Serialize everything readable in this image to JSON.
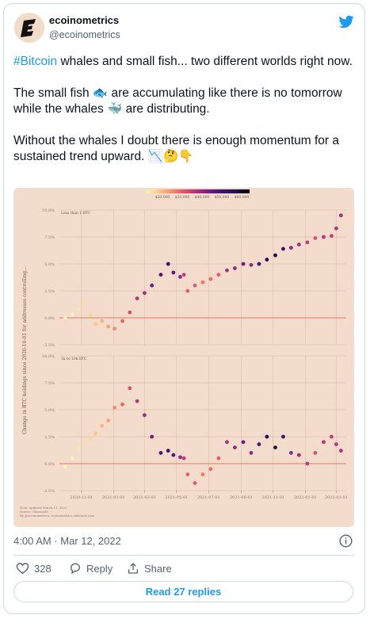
{
  "tweet": {
    "author": {
      "name": "ecoinometrics",
      "handle": "@ecoinometrics"
    },
    "text": {
      "hashtag": "#Bitcoin",
      "paragraph1": " whales and small fish... two different worlds right now.",
      "paragraph2": "The small fish 🐟 are accumulating like there is no tomorrow while the whales 🐳 are distributing.",
      "paragraph3": "Without the whales I doubt there is enough momentum for a sustained trend upward. 📉🤔👇"
    },
    "timestamp": "4:00 AM · Mar 12, 2022",
    "likes": 328,
    "actions": {
      "reply": "Reply",
      "share": "Share"
    },
    "read_replies": "Read 27 replies"
  },
  "chart_ylabel": "Change in BTC holdings since 2020-10-01 for addresses controlling...",
  "colorbar": {
    "colors": [
      "#fcf3b0",
      "#fdc588",
      "#f68b6d",
      "#d84f6f",
      "#a82e7f",
      "#6a1c81",
      "#3b0f70",
      "#1d1147",
      "#000004"
    ],
    "lim": [
      12000,
      64000
    ],
    "ticks": [
      {
        "value": 20000,
        "label": "$20,000"
      },
      {
        "value": 30000,
        "label": "$30,000"
      },
      {
        "value": 40000,
        "label": "$40,000"
      },
      {
        "value": 50000,
        "label": "$50,000"
      },
      {
        "value": 60000,
        "label": "$60,000"
      }
    ]
  },
  "footnotes": [
    "Note: updated March 11, 2022",
    "Source: Glassnode",
    "By @ecoinometrics, ecoinometrics.substack.com"
  ],
  "chart_data": [
    {
      "type": "scatter",
      "title": "Less than 1 BTC",
      "x": [
        "2020-10-01",
        "2020-10-15",
        "2020-10-28",
        "2020-11-08",
        "2020-11-18",
        "2020-11-28",
        "2020-12-10",
        "2020-12-22",
        "2021-01-03",
        "2021-01-18",
        "2021-02-01",
        "2021-02-15",
        "2021-03-01",
        "2021-03-15",
        "2021-04-01",
        "2021-04-15",
        "2021-04-25",
        "2021-05-08",
        "2021-05-15",
        "2021-05-22",
        "2021-06-05",
        "2021-06-20",
        "2021-07-05",
        "2021-07-20",
        "2021-08-05",
        "2021-08-20",
        "2021-09-05",
        "2021-09-20",
        "2021-10-05",
        "2021-10-20",
        "2021-11-05",
        "2021-11-20",
        "2021-12-05",
        "2021-12-20",
        "2022-01-05",
        "2022-01-20",
        "2022-02-05",
        "2022-02-20",
        "2022-03-01",
        "2022-03-10"
      ],
      "values": [
        0,
        0.3,
        0.8,
        1.5,
        0.2,
        -0.6,
        -0.3,
        -0.8,
        -1.0,
        -0.3,
        0.5,
        1.8,
        2.3,
        3.0,
        4.0,
        5.0,
        4.2,
        3.8,
        4.0,
        2.5,
        3.0,
        3.3,
        3.6,
        4.0,
        4.4,
        4.6,
        5.0,
        4.9,
        5.0,
        5.4,
        5.8,
        6.4,
        6.5,
        6.8,
        7.0,
        7.4,
        7.5,
        7.6,
        8.3,
        9.5
      ],
      "colors": [
        "#fcf3b0",
        "#fcf3b0",
        "#fde6a4",
        "#fde0a0",
        "#fdd592",
        "#fdc588",
        "#fcb580",
        "#fba277",
        "#f68b6d",
        "#e8636a",
        "#d84f6f",
        "#b5367a",
        "#9c2e7f",
        "#6a1c81",
        "#4e1479",
        "#3b0f70",
        "#5a167e",
        "#8c2981",
        "#c13c75",
        "#e25d6a",
        "#e0586b",
        "#ef7a5f",
        "#ec6e63",
        "#e25d6a",
        "#a82e7f",
        "#8c2981",
        "#6a1c81",
        "#8c2981",
        "#4e1479",
        "#2b0b57",
        "#1d1147",
        "#3b0f70",
        "#8c2981",
        "#a82e7f",
        "#c13c75",
        "#d84f6f",
        "#b5367a",
        "#c13c75",
        "#b5367a",
        "#a82e7f"
      ],
      "xlim": [
        "2020-09-20",
        "2022-03-20"
      ],
      "ylim": [
        -2.5,
        10
      ],
      "yticks": [
        {
          "value": -2.5,
          "label": "-2.5%"
        },
        {
          "value": 0,
          "label": "0.0%"
        },
        {
          "value": 2.5,
          "label": "2.5%"
        },
        {
          "value": 5,
          "label": "5.0%"
        },
        {
          "value": 7.5,
          "label": "7.5%"
        },
        {
          "value": 10,
          "label": "10.0%"
        }
      ],
      "grid": true
    },
    {
      "type": "scatter",
      "title": "1k to 10k BTC",
      "x": [
        "2020-10-01",
        "2020-10-15",
        "2020-10-28",
        "2020-11-08",
        "2020-11-18",
        "2020-11-28",
        "2020-12-10",
        "2020-12-22",
        "2021-01-03",
        "2021-01-18",
        "2021-02-01",
        "2021-02-15",
        "2021-03-01",
        "2021-03-15",
        "2021-04-01",
        "2021-04-15",
        "2021-04-25",
        "2021-05-08",
        "2021-05-15",
        "2021-05-22",
        "2021-06-05",
        "2021-06-20",
        "2021-07-05",
        "2021-07-20",
        "2021-08-05",
        "2021-08-20",
        "2021-09-05",
        "2021-09-20",
        "2021-10-05",
        "2021-10-20",
        "2021-11-05",
        "2021-11-20",
        "2021-12-05",
        "2021-12-20",
        "2022-01-05",
        "2022-01-20",
        "2022-02-05",
        "2022-02-20",
        "2022-03-01",
        "2022-03-10"
      ],
      "values": [
        -0.3,
        0.5,
        1.5,
        2.0,
        2.3,
        2.8,
        3.5,
        4.0,
        5.2,
        5.5,
        7.0,
        5.8,
        4.5,
        2.5,
        1.0,
        1.2,
        0.8,
        0.6,
        0.5,
        -1.0,
        -1.8,
        -1.0,
        -0.5,
        0.5,
        2.0,
        1.5,
        2.0,
        1.0,
        1.8,
        2.5,
        1.5,
        2.5,
        1.0,
        0.8,
        0.0,
        1.0,
        2.0,
        2.5,
        1.8,
        1.2
      ],
      "colors": [
        "#fcf3b0",
        "#fcf3b0",
        "#fde6a4",
        "#fde0a0",
        "#fdd592",
        "#fdc588",
        "#fcb580",
        "#fba277",
        "#f68b6d",
        "#e8636a",
        "#d84f6f",
        "#b5367a",
        "#9c2e7f",
        "#6a1c81",
        "#4e1479",
        "#3b0f70",
        "#5a167e",
        "#8c2981",
        "#c13c75",
        "#e25d6a",
        "#e0586b",
        "#ef7a5f",
        "#ec6e63",
        "#e25d6a",
        "#a82e7f",
        "#8c2981",
        "#6a1c81",
        "#8c2981",
        "#4e1479",
        "#2b0b57",
        "#1d1147",
        "#3b0f70",
        "#8c2981",
        "#a82e7f",
        "#c13c75",
        "#d84f6f",
        "#b5367a",
        "#c13c75",
        "#b5367a",
        "#a82e7f"
      ],
      "xlim": [
        "2020-09-20",
        "2022-03-20"
      ],
      "xticks": [
        "2020-11-01",
        "2021-01-01",
        "2021-03-01",
        "2021-05-01",
        "2021-07-01",
        "2021-09-01",
        "2021-11-01",
        "2022-01-01",
        "2022-03-01"
      ],
      "ylim": [
        -2.5,
        10
      ],
      "yticks": [
        {
          "value": -2.5,
          "label": "-2.5%"
        },
        {
          "value": 0,
          "label": "0.0%"
        },
        {
          "value": 2.5,
          "label": "2.5%"
        },
        {
          "value": 5,
          "label": "5.0%"
        },
        {
          "value": 7.5,
          "label": "7.5%"
        },
        {
          "value": 10,
          "label": "10.0%"
        }
      ],
      "grid": true
    }
  ]
}
